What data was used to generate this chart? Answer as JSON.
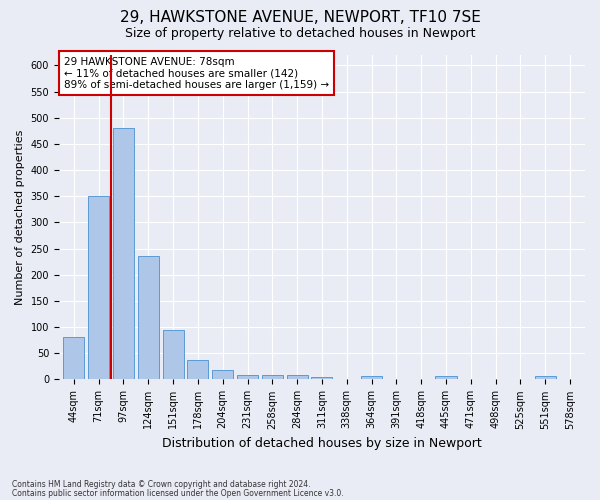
{
  "title": "29, HAWKSTONE AVENUE, NEWPORT, TF10 7SE",
  "subtitle": "Size of property relative to detached houses in Newport",
  "xlabel": "Distribution of detached houses by size in Newport",
  "ylabel": "Number of detached properties",
  "categories": [
    "44sqm",
    "71sqm",
    "97sqm",
    "124sqm",
    "151sqm",
    "178sqm",
    "204sqm",
    "231sqm",
    "258sqm",
    "284sqm",
    "311sqm",
    "338sqm",
    "364sqm",
    "391sqm",
    "418sqm",
    "445sqm",
    "471sqm",
    "498sqm",
    "525sqm",
    "551sqm",
    "578sqm"
  ],
  "values": [
    82,
    350,
    480,
    235,
    95,
    37,
    18,
    8,
    9,
    9,
    5,
    0,
    6,
    0,
    0,
    6,
    0,
    0,
    0,
    6,
    0
  ],
  "bar_color": "#aec6e8",
  "bar_edge_color": "#5b9bd5",
  "annotation_text1": "29 HAWKSTONE AVENUE: 78sqm",
  "annotation_text2": "← 11% of detached houses are smaller (142)",
  "annotation_text3": "89% of semi-detached houses are larger (1,159) →",
  "annotation_box_color": "#cc0000",
  "red_line_x": 1.5,
  "ylim": [
    0,
    620
  ],
  "yticks": [
    0,
    50,
    100,
    150,
    200,
    250,
    300,
    350,
    400,
    450,
    500,
    550,
    600
  ],
  "footer1": "Contains HM Land Registry data © Crown copyright and database right 2024.",
  "footer2": "Contains public sector information licensed under the Open Government Licence v3.0.",
  "bg_color": "#eaecf5",
  "plot_bg_color": "#eaecf5",
  "title_fontsize": 11,
  "subtitle_fontsize": 9,
  "tick_fontsize": 7,
  "ylabel_fontsize": 8,
  "xlabel_fontsize": 9
}
